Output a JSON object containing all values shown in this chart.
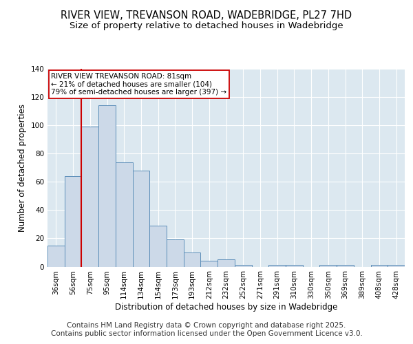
{
  "title_line1": "RIVER VIEW, TREVANSON ROAD, WADEBRIDGE, PL27 7HD",
  "title_line2": "Size of property relative to detached houses in Wadebridge",
  "xlabel": "Distribution of detached houses by size in Wadebridge",
  "ylabel": "Number of detached properties",
  "categories": [
    "36sqm",
    "56sqm",
    "75sqm",
    "95sqm",
    "114sqm",
    "134sqm",
    "154sqm",
    "173sqm",
    "193sqm",
    "212sqm",
    "232sqm",
    "252sqm",
    "271sqm",
    "291sqm",
    "310sqm",
    "330sqm",
    "350sqm",
    "369sqm",
    "389sqm",
    "408sqm",
    "428sqm"
  ],
  "values": [
    15,
    64,
    99,
    114,
    74,
    68,
    29,
    19,
    10,
    4,
    5,
    1,
    0,
    1,
    1,
    0,
    1,
    1,
    0,
    1,
    1
  ],
  "bar_color": "#ccd9e8",
  "bar_edge_color": "#5b8db8",
  "bar_width": 1.0,
  "red_line_x": 1.5,
  "annotation_text": "RIVER VIEW TREVANSON ROAD: 81sqm\n← 21% of detached houses are smaller (104)\n79% of semi-detached houses are larger (397) →",
  "annotation_box_color": "#ffffff",
  "annotation_box_edge": "#cc0000",
  "red_line_color": "#cc0000",
  "ylim": [
    0,
    140
  ],
  "background_color": "#dce8f0",
  "footer_line1": "Contains HM Land Registry data © Crown copyright and database right 2025.",
  "footer_line2": "Contains public sector information licensed under the Open Government Licence v3.0.",
  "title_fontsize": 10.5,
  "subtitle_fontsize": 9.5,
  "axis_label_fontsize": 8.5,
  "tick_fontsize": 7.5,
  "footer_fontsize": 7.5
}
